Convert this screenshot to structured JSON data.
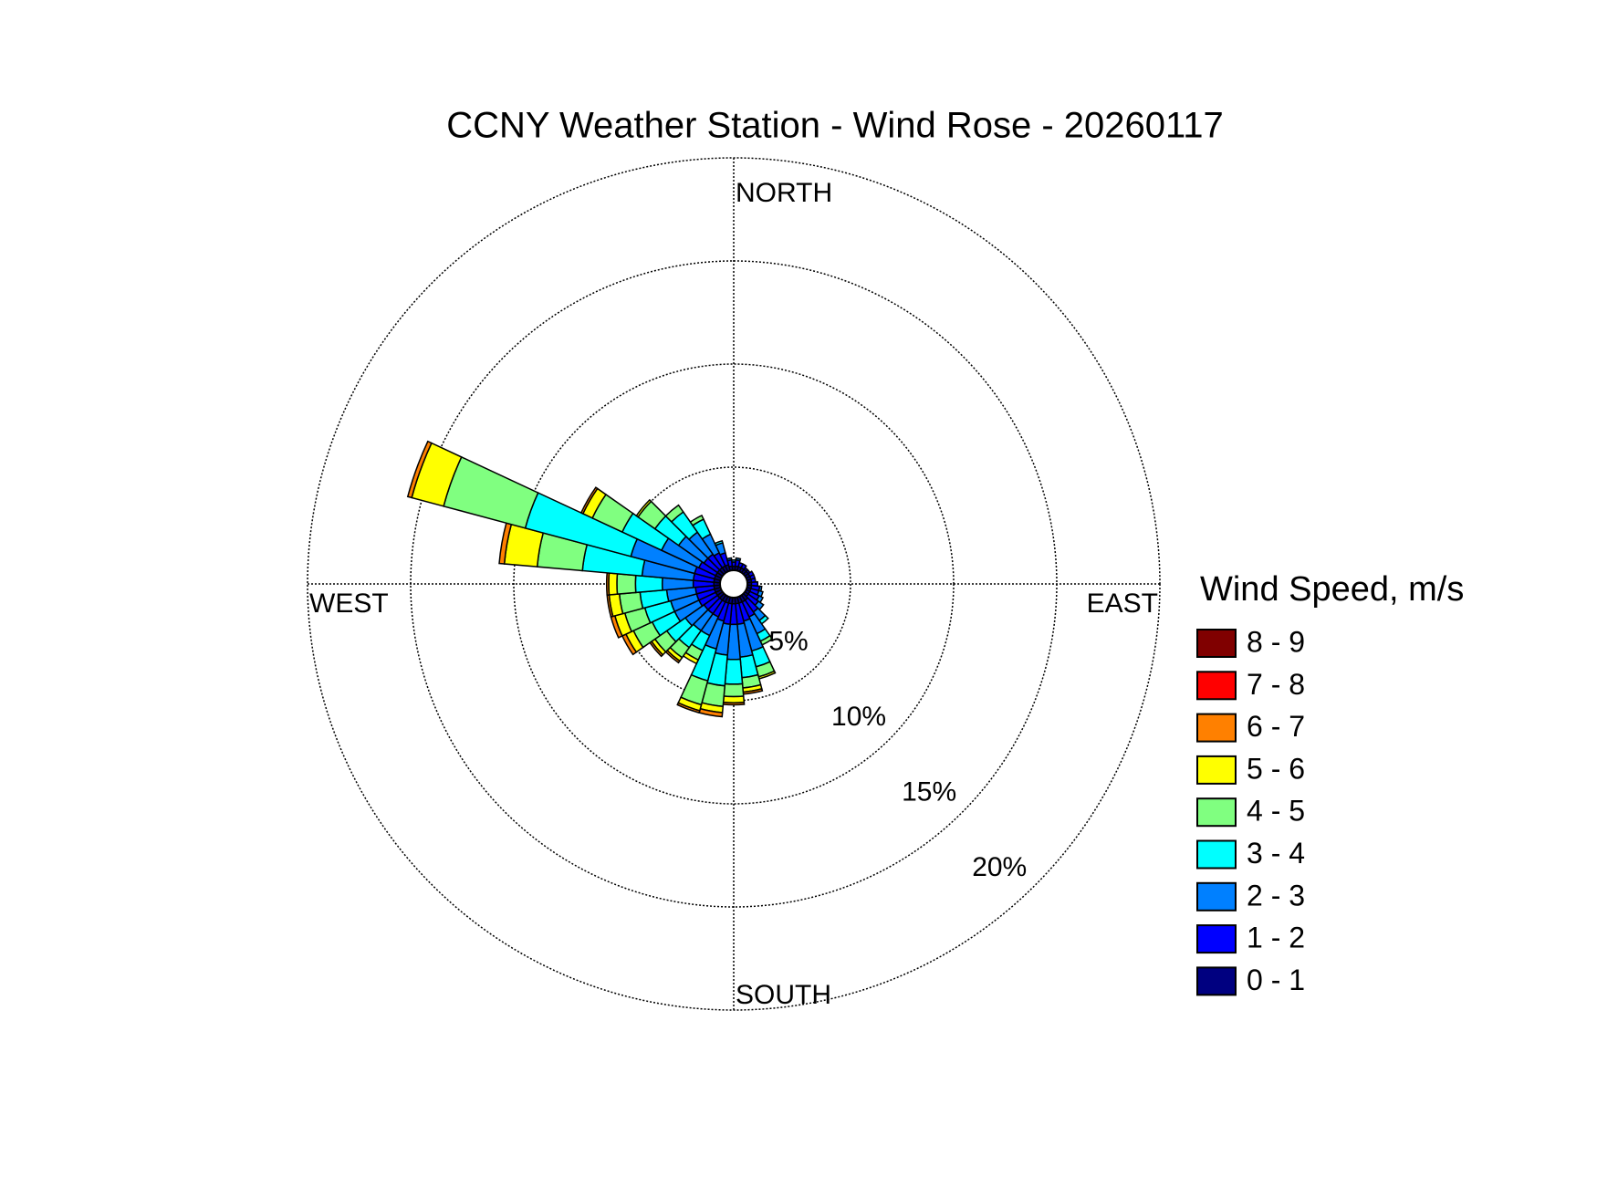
{
  "chart_data": {
    "type": "windrose",
    "title": "CCNY Weather Station - Wind Rose - 20260117",
    "legend_title": "Wind Speed, m/s",
    "direction_labels": {
      "north": "NORTH",
      "east": "EAST",
      "south": "SOUTH",
      "west": "WEST"
    },
    "theta": [
      0,
      10,
      20,
      30,
      40,
      50,
      60,
      70,
      80,
      90,
      100,
      110,
      120,
      130,
      140,
      150,
      160,
      170,
      180,
      190,
      200,
      210,
      220,
      230,
      240,
      250,
      260,
      270,
      280,
      290,
      300,
      310,
      320,
      330,
      340,
      350
    ],
    "rlim": [
      0,
      20
    ],
    "rticks": [
      {
        "value": 5,
        "label": "5%"
      },
      {
        "value": 10,
        "label": "10%"
      },
      {
        "value": 15,
        "label": "15%"
      },
      {
        "value": 20,
        "label": "20%"
      }
    ],
    "grid": true,
    "legend": "right",
    "series": [
      {
        "name": "0 - 1",
        "color": "#000080",
        "values": [
          0.2,
          0.2,
          0.2,
          0.2,
          0.2,
          0.2,
          0.2,
          0.2,
          0.2,
          0.2,
          0.2,
          0.2,
          0.2,
          0.2,
          0.3,
          0.3,
          0.3,
          0.3,
          0.3,
          0.3,
          0.3,
          0.3,
          0.3,
          0.3,
          0.3,
          0.3,
          0.3,
          0.3,
          0.3,
          0.3,
          0.3,
          0.3,
          0.3,
          0.3,
          0.3,
          0.2
        ]
      },
      {
        "name": "1 - 2",
        "color": "#0000ff",
        "values": [
          0.2,
          0.3,
          0.2,
          0.2,
          0.1,
          0.1,
          0.2,
          0.2,
          0.2,
          0.3,
          0.4,
          0.4,
          0.5,
          0.6,
          0.7,
          0.8,
          0.9,
          1.0,
          1.0,
          1.0,
          0.9,
          0.8,
          0.8,
          0.8,
          0.9,
          0.9,
          0.9,
          1.0,
          1.0,
          1.0,
          0.9,
          0.8,
          0.8,
          0.7,
          0.6,
          0.3
        ]
      },
      {
        "name": "2 - 3",
        "color": "#0080ff",
        "values": [
          0.1,
          0.1,
          0,
          0,
          0,
          0,
          0,
          0,
          0,
          0,
          0.1,
          0.2,
          0.2,
          0.3,
          0.5,
          0.9,
          1.5,
          1.6,
          1.7,
          1.5,
          1.4,
          1.0,
          1.0,
          1.1,
          1.3,
          1.3,
          1.4,
          1.5,
          2.5,
          3.2,
          2.0,
          1.5,
          1.3,
          1.0,
          0.5,
          0.1
        ]
      },
      {
        "name": "3 - 4",
        "color": "#00ffff",
        "values": [
          0,
          0,
          0,
          0,
          0,
          0,
          0,
          0,
          0,
          0,
          0,
          0,
          0,
          0,
          0.2,
          0.4,
          0.8,
          1.0,
          1.2,
          1.5,
          1.6,
          0.8,
          1.0,
          1.1,
          1.2,
          1.3,
          1.3,
          1.3,
          2.9,
          5.3,
          2.1,
          1.4,
          1.2,
          0.8,
          0.1,
          0
        ]
      },
      {
        "name": "4 - 5",
        "color": "#80ff80",
        "values": [
          0,
          0,
          0,
          0,
          0,
          0,
          0,
          0,
          0,
          0,
          0,
          0,
          0,
          0,
          0,
          0.2,
          0.5,
          0.5,
          0.6,
          1.0,
          1.2,
          0.5,
          0.6,
          0.7,
          1.0,
          1.0,
          1.0,
          0.9,
          2.2,
          4.1,
          1.6,
          1.0,
          0.4,
          0.2,
          0,
          0
        ]
      },
      {
        "name": "5 - 6",
        "color": "#ffff00",
        "values": [
          0,
          0,
          0,
          0,
          0,
          0,
          0,
          0,
          0,
          0,
          0,
          0,
          0,
          0,
          0,
          0,
          0.1,
          0.2,
          0.3,
          0.3,
          0.3,
          0.2,
          0.2,
          0.2,
          0.4,
          0.5,
          0.5,
          0.4,
          1.6,
          1.6,
          0.5,
          0.1,
          0,
          0,
          0,
          0
        ]
      },
      {
        "name": "6 - 7",
        "color": "#ff8000",
        "values": [
          0,
          0,
          0,
          0,
          0,
          0,
          0,
          0,
          0,
          0,
          0,
          0,
          0,
          0,
          0,
          0,
          0,
          0.1,
          0.1,
          0.2,
          0.1,
          0,
          0.1,
          0.1,
          0.2,
          0.2,
          0.1,
          0.1,
          0.25,
          0.2,
          0.1,
          0,
          0,
          0,
          0,
          0
        ]
      },
      {
        "name": "7 - 8",
        "color": "#ff0000",
        "values": [
          0,
          0,
          0,
          0,
          0,
          0,
          0,
          0,
          0,
          0,
          0,
          0,
          0,
          0,
          0,
          0,
          0,
          0,
          0,
          0,
          0,
          0,
          0,
          0,
          0,
          0,
          0,
          0,
          0,
          0,
          0,
          0,
          0,
          0,
          0,
          0
        ]
      },
      {
        "name": "8 - 9",
        "color": "#800000",
        "values": [
          0,
          0,
          0,
          0,
          0,
          0,
          0,
          0,
          0,
          0,
          0,
          0,
          0,
          0,
          0,
          0,
          0,
          0,
          0,
          0,
          0,
          0,
          0,
          0,
          0,
          0,
          0,
          0,
          0,
          0,
          0,
          0,
          0,
          0,
          0,
          0
        ]
      }
    ]
  }
}
